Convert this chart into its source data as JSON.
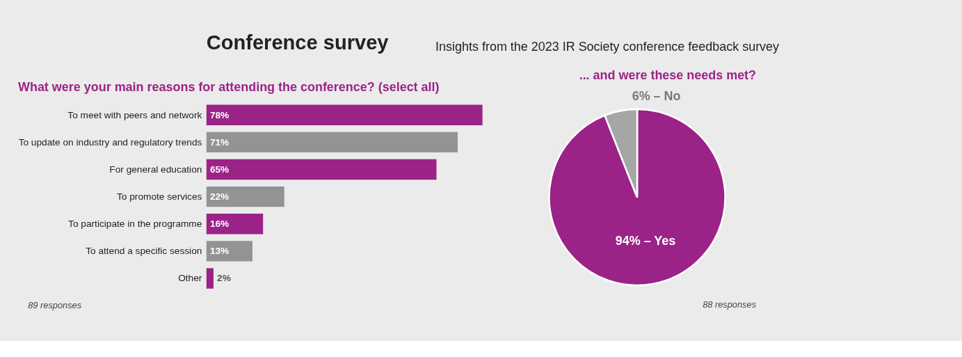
{
  "chart_data": [
    {
      "type": "other",
      "title": "Conference survey",
      "subtitle": "Insights from the 2023 IR Society conference feedback survey"
    },
    {
      "type": "bar",
      "orientation": "horizontal",
      "title": "What were your main reasons for attending the conference? (select all)",
      "categories": [
        "To meet with peers and network",
        "To update on industry and regulatory trends",
        "For general education",
        "To promote services",
        "To participate in the programme",
        "To attend a specific session",
        "Other"
      ],
      "values": [
        78,
        71,
        65,
        22,
        16,
        13,
        2
      ],
      "colors": [
        "#9b2387",
        "#939393",
        "#9b2387",
        "#939393",
        "#9b2387",
        "#939393",
        "#9b2387"
      ],
      "value_labels": [
        "78%",
        "71%",
        "65%",
        "22%",
        "16%",
        "13%",
        "2%"
      ],
      "annotations": [
        "89 responses"
      ]
    },
    {
      "type": "pie",
      "title": "... and were these needs met?",
      "categories": [
        "94% – Yes",
        "6% – No"
      ],
      "values": [
        94,
        6
      ],
      "colors": [
        "#9b2387",
        "#a6a6a6"
      ],
      "annotations": [
        "88 responses"
      ]
    }
  ]
}
